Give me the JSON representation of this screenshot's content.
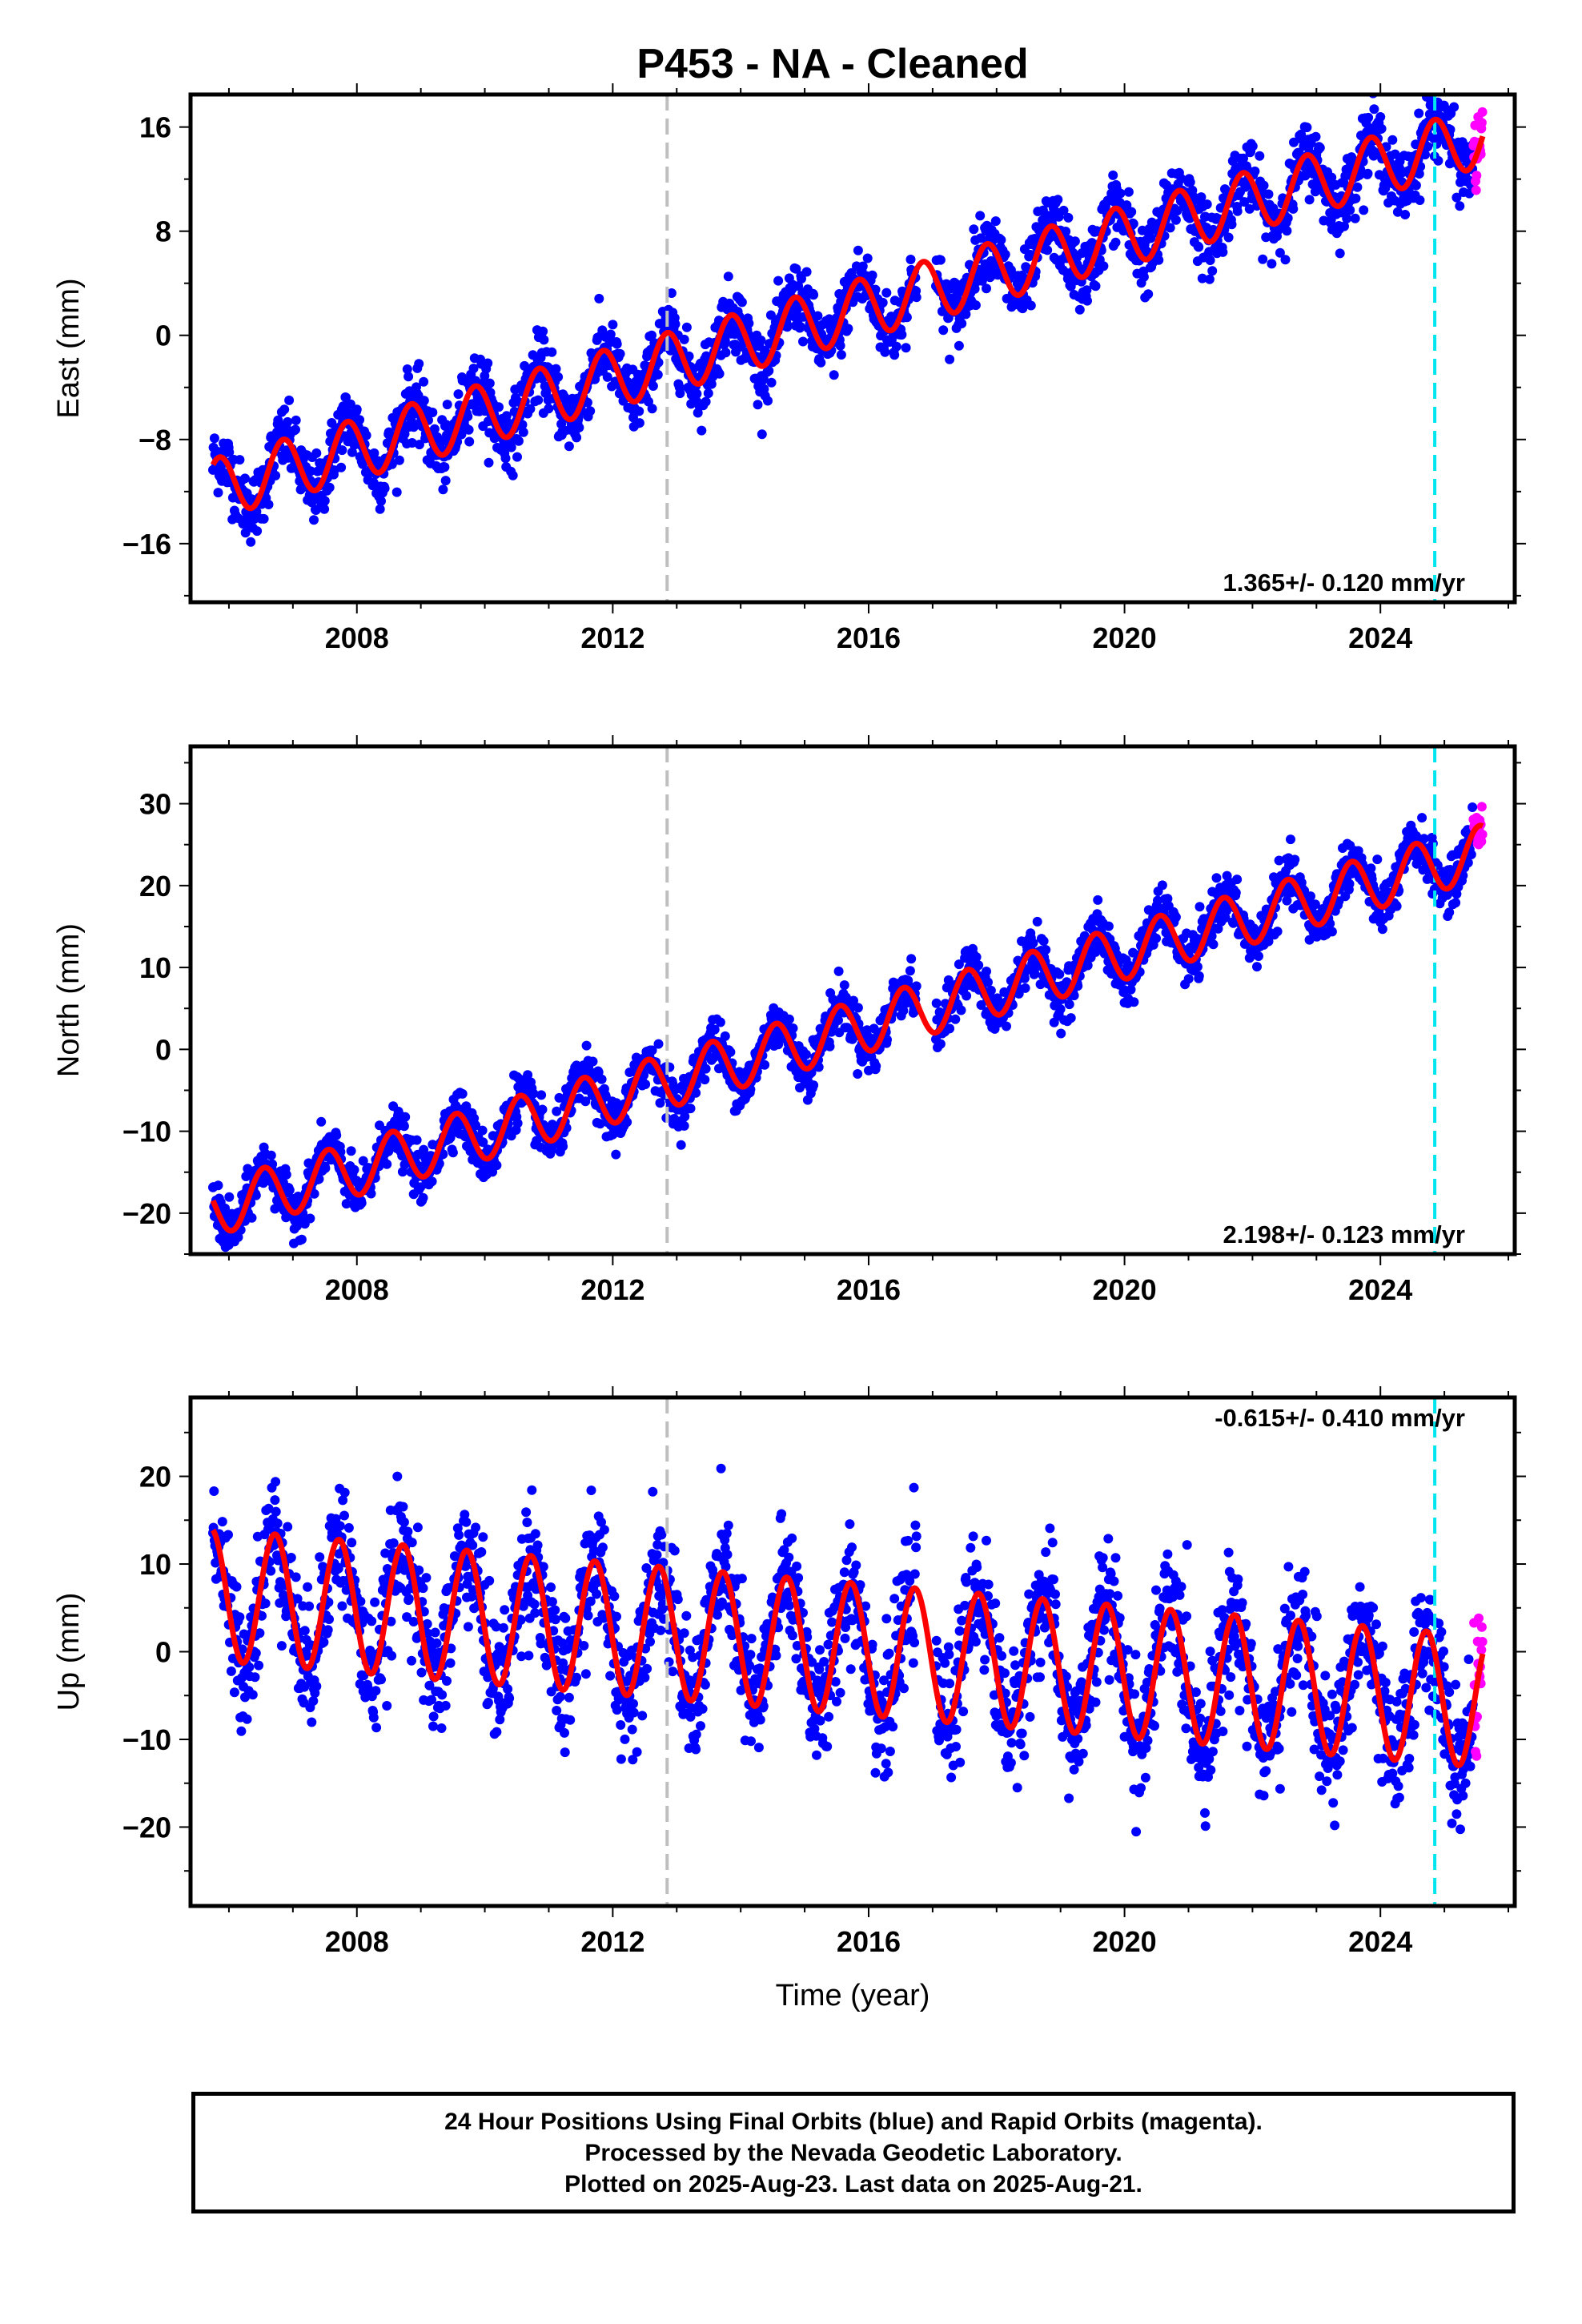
{
  "title": "P453  - NA - Cleaned",
  "footer": {
    "line1": "24 Hour Positions Using Final Orbits (blue) and Rapid Orbits (magenta).",
    "line2": "Processed by the Nevada Geodetic Laboratory.",
    "line3": "Plotted on 2025-Aug-23. Last data on 2025-Aug-21."
  },
  "colors": {
    "final_orbits": "#0000ff",
    "rapid_orbits": "#ff00ff",
    "model": "#ff0000",
    "event_gray": "#bfbfbf",
    "event_cyan": "#00e5ee"
  },
  "chart_data": [
    {
      "type": "scatter",
      "component": "east",
      "ylabel": "East (mm)",
      "xlabel": "",
      "xlim": [
        2005.4,
        2026.1
      ],
      "ylim": [
        -20.5,
        18.5
      ],
      "xticks": [
        2008,
        2012,
        2016,
        2020,
        2024
      ],
      "xtick_labels": [
        "2008",
        "2012",
        "2016",
        "2020",
        "2024"
      ],
      "yticks": [
        -16,
        -8,
        0,
        8,
        16
      ],
      "ytick_labels": [
        "−16",
        "−8",
        "0",
        "8",
        "16"
      ],
      "x_range": [
        2005.75,
        2025.6
      ],
      "rapid_from": 2025.45,
      "rate_label": "1.365+/- 0.120 mm/yr",
      "rate_position": "bottom-right",
      "event_lines": [
        {
          "x": 2012.85,
          "color": "gray"
        },
        {
          "x": 2024.85,
          "color": "cyan"
        }
      ],
      "model": {
        "start_value": -11.8,
        "rate": 1.365,
        "annual_amplitude": 2.3,
        "peak_phase": 0.85,
        "noise_sd": 1.3
      },
      "grid": false
    },
    {
      "type": "scatter",
      "component": "north",
      "ylabel": "North (mm)",
      "xlabel": "",
      "xlim": [
        2005.4,
        2026.1
      ],
      "ylim": [
        -25,
        37
      ],
      "xticks": [
        2008,
        2012,
        2016,
        2020,
        2024
      ],
      "xtick_labels": [
        "2008",
        "2012",
        "2016",
        "2020",
        "2024"
      ],
      "yticks": [
        -20,
        -10,
        0,
        10,
        20,
        30
      ],
      "ytick_labels": [
        "−20",
        "−10",
        "0",
        "10",
        "20",
        "30"
      ],
      "x_range": [
        2005.75,
        2025.6
      ],
      "rapid_from": 2025.45,
      "rate_label": "2.198+/- 0.123 mm/yr",
      "rate_position": "bottom-right",
      "event_lines": [
        {
          "x": 2012.85,
          "color": "gray"
        },
        {
          "x": 2024.85,
          "color": "cyan"
        }
      ],
      "model": {
        "start_value": -19.5,
        "rate": 2.198,
        "annual_amplitude": 3.3,
        "peak_phase": 0.55,
        "noise_sd": 1.5
      },
      "grid": false
    },
    {
      "type": "scatter",
      "component": "up",
      "ylabel": "Up (mm)",
      "xlabel": "Time (year)",
      "xlim": [
        2005.4,
        2026.1
      ],
      "ylim": [
        -29,
        29
      ],
      "xticks": [
        2008,
        2012,
        2016,
        2020,
        2024
      ],
      "xtick_labels": [
        "2008",
        "2012",
        "2016",
        "2020",
        "2024"
      ],
      "yticks": [
        -20,
        -10,
        0,
        10,
        20
      ],
      "ytick_labels": [
        "−20",
        "−10",
        "0",
        "10",
        "20"
      ],
      "x_range": [
        2005.75,
        2025.6
      ],
      "rapid_from": 2025.45,
      "rate_label": "-0.615+/- 0.410 mm/yr",
      "rate_position": "top-right",
      "event_lines": [
        {
          "x": 2012.85,
          "color": "gray"
        },
        {
          "x": 2024.85,
          "color": "cyan"
        }
      ],
      "model": {
        "start_value": 6.5,
        "rate": -0.615,
        "annual_amplitude": 7.5,
        "peak_phase": 0.72,
        "noise_sd": 3.6
      },
      "grid": false
    }
  ]
}
